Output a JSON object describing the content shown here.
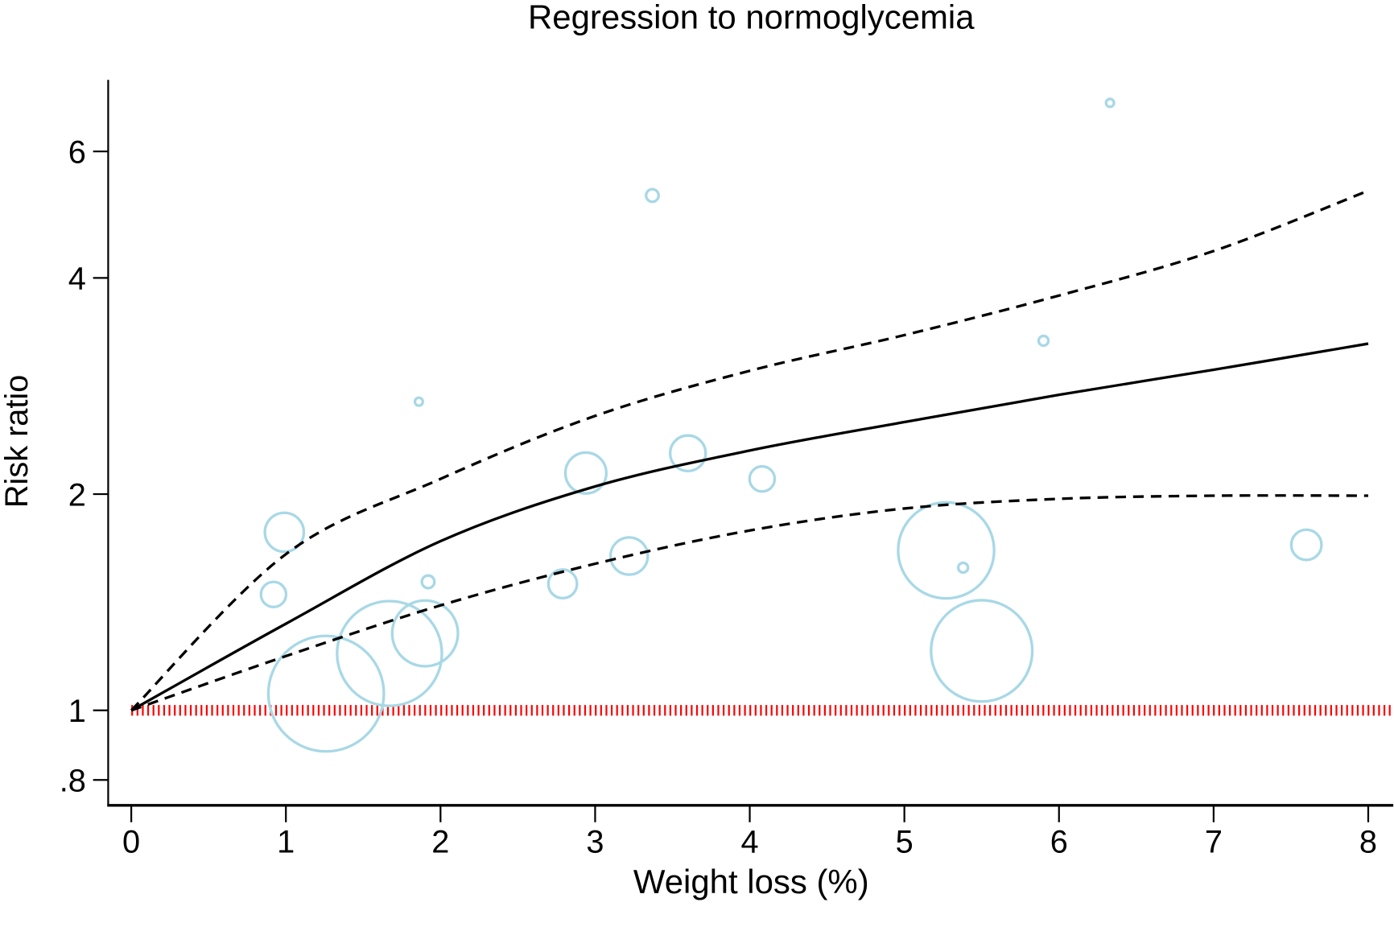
{
  "chart_data": {
    "type": "scatter",
    "title": "Regression to normoglycemia",
    "xlabel": "Weight loss (%)",
    "ylabel": "Risk ratio",
    "xlim": [
      0,
      8
    ],
    "ylim": [
      0.75,
      7.5
    ],
    "y_scale": "log",
    "grid": false,
    "x_ticks": [
      0,
      1,
      2,
      3,
      4,
      5,
      6,
      7,
      8
    ],
    "x_tick_labels": [
      "0",
      "1",
      "2",
      "3",
      "4",
      "5",
      "6",
      "7",
      "8"
    ],
    "y_ticks": [
      0.8,
      1,
      2,
      4,
      6
    ],
    "y_tick_labels": [
      ".8",
      "1",
      "2",
      "4",
      "6"
    ],
    "colors": {
      "bubbles": "#a8d8e6",
      "curves": "#000000",
      "reference": "#ff0000"
    },
    "reference_line": {
      "y": 1,
      "style": "dotted",
      "color": "#ff0000"
    },
    "points": [
      {
        "x": 0.99,
        "y": 1.77,
        "weight": 4.8
      },
      {
        "x": 0.92,
        "y": 1.45,
        "weight": 2.0
      },
      {
        "x": 1.26,
        "y": 1.055,
        "weight": 42.3
      },
      {
        "x": 1.67,
        "y": 1.2,
        "weight": 34.8
      },
      {
        "x": 1.9,
        "y": 1.28,
        "weight": 13.7
      },
      {
        "x": 1.92,
        "y": 1.51,
        "weight": 0.5
      },
      {
        "x": 1.86,
        "y": 2.69,
        "weight": 0.2
      },
      {
        "x": 2.79,
        "y": 1.5,
        "weight": 2.6
      },
      {
        "x": 2.94,
        "y": 2.14,
        "weight": 5.3
      },
      {
        "x": 3.22,
        "y": 1.64,
        "weight": 4.4
      },
      {
        "x": 3.37,
        "y": 5.21,
        "weight": 0.5
      },
      {
        "x": 3.6,
        "y": 2.28,
        "weight": 4.0
      },
      {
        "x": 4.08,
        "y": 2.1,
        "weight": 2.0
      },
      {
        "x": 5.27,
        "y": 1.67,
        "weight": 29.2
      },
      {
        "x": 5.38,
        "y": 1.58,
        "weight": 0.3
      },
      {
        "x": 5.5,
        "y": 1.21,
        "weight": 32.5
      },
      {
        "x": 5.9,
        "y": 3.27,
        "weight": 0.3
      },
      {
        "x": 6.33,
        "y": 7.01,
        "weight": 0.2
      },
      {
        "x": 7.6,
        "y": 1.7,
        "weight": 2.9
      }
    ],
    "series": [
      {
        "style": "solid",
        "x": [
          0,
          1,
          2,
          3,
          4,
          5,
          6,
          7,
          8
        ],
        "y": [
          1,
          1.32,
          1.72,
          2.05,
          2.3,
          2.52,
          2.75,
          2.98,
          3.24
        ]
      },
      {
        "style": "dashed",
        "x": [
          0,
          1,
          2,
          3,
          4,
          5,
          6,
          7,
          8
        ],
        "y": [
          1,
          1.65,
          2.1,
          2.57,
          2.97,
          3.33,
          3.78,
          4.36,
          5.29
        ]
      },
      {
        "style": "dashed",
        "x": [
          0,
          1,
          2,
          3,
          4,
          5,
          6,
          7,
          8
        ],
        "y": [
          1,
          1.19,
          1.4,
          1.6,
          1.78,
          1.91,
          1.97,
          1.99,
          1.99
        ]
      }
    ]
  }
}
